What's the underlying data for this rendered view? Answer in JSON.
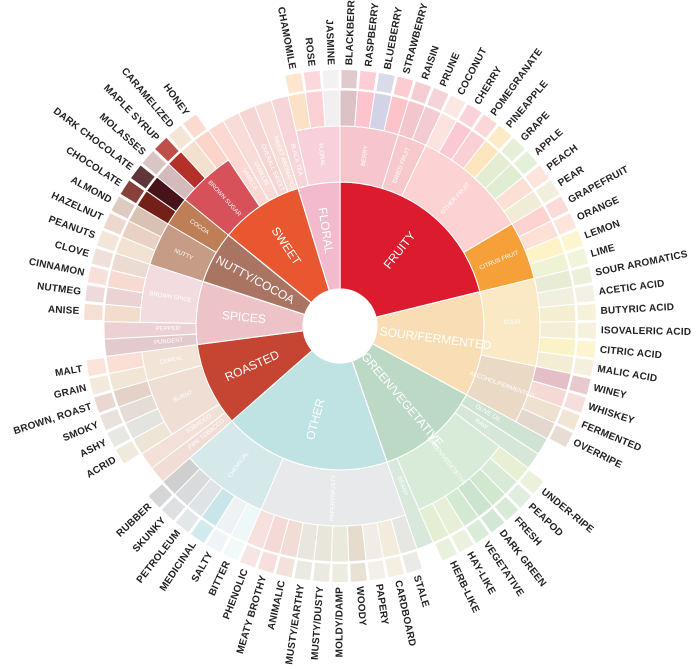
{
  "wheel": [
    {
      "name": "FRUITY",
      "color": "#dc1c2e",
      "children": [
        {
          "name": "BERRY",
          "color": "#f7c6cc",
          "leaves": [
            {
              "name": "BLACKBERRY",
              "color": "#dcc1c5"
            },
            {
              "name": "RASPBERRY",
              "color": "#fdc4cf"
            },
            {
              "name": "BLUEBERRY",
              "color": "#d2d3e6"
            },
            {
              "name": "STRAWBERRY",
              "color": "#fcc3c8"
            }
          ]
        },
        {
          "name": "DRIED FRUIT",
          "color": "#f7c9cc",
          "leaves": [
            {
              "name": "RAISIN",
              "color": "#f2c6cb"
            },
            {
              "name": "PRUNE",
              "color": "#f3ccd2"
            }
          ]
        },
        {
          "name": "OTHER FRUIT",
          "color": "#fcd2d3",
          "leaves": [
            {
              "name": "COCONUT",
              "color": "#fce3df"
            },
            {
              "name": "CHERRY",
              "color": "#fac9d3"
            },
            {
              "name": "POMEGRANATE",
              "color": "#fbd0d4"
            },
            {
              "name": "PINEAPPLE",
              "color": "#fde6bd"
            },
            {
              "name": "GRAPE",
              "color": "#e4ecd2"
            },
            {
              "name": "APPLE",
              "color": "#dfeed2"
            },
            {
              "name": "PEACH",
              "color": "#fde0d5"
            },
            {
              "name": "PEAR",
              "color": "#f0ecd6"
            }
          ]
        },
        {
          "name": "CITRUS FRUIT",
          "color": "#f6a03a",
          "leaves": [
            {
              "name": "GRAPEFRUIT",
              "color": "#fcd3d0"
            },
            {
              "name": "ORANGE",
              "color": "#fde1d6"
            },
            {
              "name": "LEMON",
              "color": "#fdf3c6"
            },
            {
              "name": "LIME",
              "color": "#f0f2d4"
            }
          ]
        }
      ]
    },
    {
      "name": "SOUR/FERMENTED",
      "color": "#f9ddb4",
      "children": [
        {
          "name": "SOUR",
          "color": "#fbe9c6",
          "leaves": [
            {
              "name": "SOUR AROMATICS",
              "color": "#e9ecd4"
            },
            {
              "name": "ACETIC ACID",
              "color": "#f1efe0"
            },
            {
              "name": "BUTYRIC ACID",
              "color": "#f5efd2"
            },
            {
              "name": "ISOVALERIC ACID",
              "color": "#f3efd6"
            },
            {
              "name": "CITRIC ACID",
              "color": "#fbf3c7"
            },
            {
              "name": "MALIC ACID",
              "color": "#f3edd5"
            }
          ]
        },
        {
          "name": "ALCOHOL/FERMENTED",
          "color": "#ead9c4",
          "leaves": [
            {
              "name": "WINEY",
              "color": "#e4bfc7"
            },
            {
              "name": "WHISKEY",
              "color": "#f4d9d5"
            },
            {
              "name": "FERMENTED",
              "color": "#efe1cf"
            },
            {
              "name": "OVERRIPE",
              "color": "#e4d7ce"
            }
          ]
        }
      ]
    },
    {
      "name": "GREEN/VEGETATIVE",
      "color": "#bcd9c5",
      "children": [
        {
          "name": "OLIVE OIL",
          "color": "#cfe3d2",
          "leaves": []
        },
        {
          "name": "RAW",
          "color": "#d6e7d8",
          "leaves": []
        },
        {
          "name": "GREEN/VEGETATIVE",
          "color": "#d8ead8",
          "leaves": [
            {
              "name": "UNDER-RIPE",
              "color": "#e7efd5"
            },
            {
              "name": "PEAPOD",
              "color": "#d9ebd8"
            },
            {
              "name": "FRESH",
              "color": "#d2e7d0"
            },
            {
              "name": "DARK GREEN",
              "color": "#cbe3cf"
            },
            {
              "name": "VEGETATIVE",
              "color": "#d4e9d1"
            },
            {
              "name": "HAY-LIKE",
              "color": "#e7efd9"
            },
            {
              "name": "HERB-LIKE",
              "color": "#e4eed5"
            }
          ]
        },
        {
          "name": "BEANY",
          "color": "#d8e8da",
          "leaves": []
        }
      ]
    },
    {
      "name": "OTHER",
      "color": "#bfe2e3",
      "children": [
        {
          "name": "PAPERY/MUSTY",
          "color": "#e8e9ea",
          "leaves": [
            {
              "name": "STALE",
              "color": "#e6e6e3"
            },
            {
              "name": "CARDBOARD",
              "color": "#f3ecdc"
            },
            {
              "name": "PAPERY",
              "color": "#f2ece6"
            },
            {
              "name": "WOODY",
              "color": "#e5dccd"
            },
            {
              "name": "MOLDY/DAMP",
              "color": "#eae9dc"
            },
            {
              "name": "MUSTY/DUSTY",
              "color": "#e9e5da"
            },
            {
              "name": "MUSTY/EARTHY",
              "color": "#e8e6dd"
            },
            {
              "name": "ANIMALIC",
              "color": "#f1ddd6"
            },
            {
              "name": "MEATY BROTHY",
              "color": "#f5d9d6"
            },
            {
              "name": "PHENOLIC",
              "color": "#f6e1de"
            }
          ]
        },
        {
          "name": "CHEMICAL",
          "color": "#d5e8ea",
          "leaves": [
            {
              "name": "BITTER",
              "color": "#eef8f8"
            },
            {
              "name": "SALTY",
              "color": "#eef2f4"
            },
            {
              "name": "MEDICINAL",
              "color": "#c8e6ea"
            },
            {
              "name": "PETROLEUM",
              "color": "#dde3e6"
            },
            {
              "name": "SKUNKY",
              "color": "#d8dadc"
            },
            {
              "name": "RUBBER",
              "color": "#cfcfd0"
            }
          ]
        }
      ]
    },
    {
      "name": "ROASTED",
      "color": "#c64532",
      "children": [
        {
          "name": "PIPE TOBACCO",
          "color": "#f1dcd6",
          "leaves": []
        },
        {
          "name": "TOBACCO",
          "color": "#f3e0d9",
          "leaves": []
        },
        {
          "name": "BURNT",
          "color": "#efded4",
          "leaves": [
            {
              "name": "ACRID",
              "color": "#ede6d7"
            },
            {
              "name": "ASHY",
              "color": "#e3e3df"
            },
            {
              "name": "SMOKY",
              "color": "#e5dcd6"
            },
            {
              "name": "BROWN, ROAST",
              "color": "#e4d1c8"
            }
          ]
        },
        {
          "name": "CEREAL",
          "color": "#f3e4d8",
          "leaves": [
            {
              "name": "GRAIN",
              "color": "#f1e5d6"
            },
            {
              "name": "MALT",
              "color": "#fbdfd4"
            }
          ]
        }
      ]
    },
    {
      "name": "SPICES",
      "color": "#edc3c7",
      "children": [
        {
          "name": "PUNGENT",
          "color": "#e3cace",
          "leaves": []
        },
        {
          "name": "PEPPER",
          "color": "#ebd1d4",
          "leaves": []
        },
        {
          "name": "BROWN SPICE",
          "color": "#f2dcdf",
          "leaves": [
            {
              "name": "ANISE",
              "color": "#f2dccb"
            },
            {
              "name": "NUTMEG",
              "color": "#ebd3d4"
            },
            {
              "name": "CINNAMON",
              "color": "#f7dbd3"
            },
            {
              "name": "CLOVE",
              "color": "#ecdbd3"
            }
          ]
        }
      ]
    },
    {
      "name": "NUTTY/COCOA",
      "color": "#a97562",
      "children": [
        {
          "name": "NUTTY",
          "color": "#c69c86",
          "leaves": [
            {
              "name": "PEANUTS",
              "color": "#f1e2d2"
            },
            {
              "name": "HAZELNUT",
              "color": "#e9d1c4"
            },
            {
              "name": "ALMOND",
              "color": "#d9c1b4"
            }
          ]
        },
        {
          "name": "COCOA",
          "color": "#be7e56",
          "leaves": [
            {
              "name": "CHOCOLATE",
              "color": "#722018"
            },
            {
              "name": "DARK CHOCOLATE",
              "color": "#451318"
            }
          ]
        }
      ]
    },
    {
      "name": "SWEET",
      "color": "#e8572f",
      "children": [
        {
          "name": "BROWN SUGAR",
          "color": "#d7515a",
          "leaves": [
            {
              "name": "MOLASSES",
              "color": "#d3bbbb"
            },
            {
              "name": "MAPLE SYRUP",
              "color": "#b43129"
            },
            {
              "name": "CARAMELIZED",
              "color": "#f3e0cf"
            },
            {
              "name": "HONEY",
              "color": "#fcd4c8"
            }
          ]
        },
        {
          "name": "VANILLA",
          "color": "#fbd8d2",
          "leaves": []
        },
        {
          "name": "VANILLIN",
          "color": "#f8dcd8",
          "leaves": []
        },
        {
          "name": "OVERALL SWEET",
          "color": "#f5d6d4",
          "leaves": []
        },
        {
          "name": "SWEET AROMATICS",
          "color": "#f7dcd7",
          "leaves": []
        }
      ]
    },
    {
      "name": "FLORAL",
      "color": "#f3b9cc",
      "children": [
        {
          "name": "BLACK TEA",
          "color": "#f7d4d7",
          "leaves": []
        },
        {
          "name": "FLORAL",
          "color": "#f8d0dc",
          "leaves": [
            {
              "name": "CHAMOMILE",
              "color": "#fde1c7"
            },
            {
              "name": "ROSE",
              "color": "#fbd1d6"
            },
            {
              "name": "JASMINE",
              "color": "#f2eff0"
            }
          ]
        }
      ]
    }
  ]
}
